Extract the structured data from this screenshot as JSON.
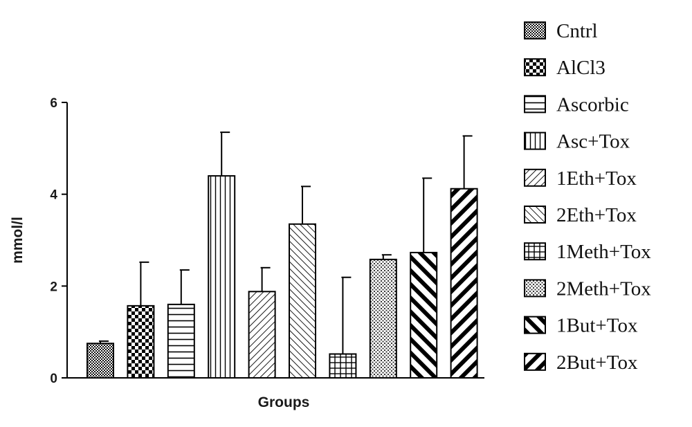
{
  "chart_data": {
    "type": "bar",
    "title": "",
    "xlabel": "Groups",
    "ylabel": "mmol/l",
    "ylim": [
      0,
      6
    ],
    "yticks": [
      "0",
      "2",
      "4",
      "6"
    ],
    "categories": [
      "Cntrl",
      "AlCl3",
      "Ascorbic",
      "Asc+Tox",
      "1Eth+Tox",
      "2Eth+Tox",
      "1Meth+Tox",
      "2Meth+Tox",
      "1But+Tox",
      "2But+Tox"
    ],
    "values": [
      0.75,
      1.57,
      1.6,
      4.4,
      1.88,
      3.35,
      0.52,
      2.58,
      2.73,
      4.12
    ],
    "error_upper": [
      0.05,
      0.95,
      0.75,
      0.95,
      0.52,
      0.82,
      1.67,
      0.1,
      1.62,
      1.15
    ],
    "fill_patterns": [
      "fine-dots",
      "checker",
      "horizontal-lines",
      "vertical-lines",
      "diagonal-right-fine",
      "diagonal-left-fine",
      "grid",
      "fine-dots-light",
      "diagonal-left-bold",
      "diagonal-right-bold"
    ],
    "grid": false,
    "legend_position": "right",
    "bar_edge_color": "#000000"
  }
}
